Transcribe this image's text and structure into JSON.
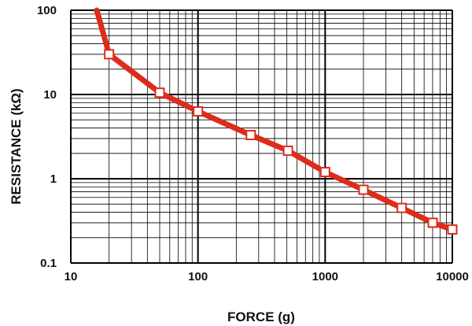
{
  "chart_data": {
    "type": "line",
    "title": "",
    "xlabel": "FORCE (g)",
    "ylabel": "RESISTANCE (kΩ)",
    "xscale": "log",
    "yscale": "log",
    "xlim": [
      10,
      10000
    ],
    "ylim": [
      0.1,
      100
    ],
    "grid": true,
    "x_ticks": [
      {
        "value": 10,
        "label": "10"
      },
      {
        "value": 100,
        "label": "100"
      },
      {
        "value": 1000,
        "label": "1000"
      },
      {
        "value": 10000,
        "label": "10000"
      }
    ],
    "y_ticks": [
      {
        "value": 0.1,
        "label": "0.1"
      },
      {
        "value": 1,
        "label": "1"
      },
      {
        "value": 10,
        "label": "10"
      },
      {
        "value": 100,
        "label": "100"
      }
    ],
    "line_color": "#dd2c1c",
    "marker_fill": "#ffffff",
    "grid_color": "#000000",
    "series": [
      {
        "curve_start": {
          "x": 16,
          "y": 100
        },
        "points": [
          {
            "x": 20,
            "y": 30
          },
          {
            "x": 50,
            "y": 10.5
          },
          {
            "x": 100,
            "y": 6.3
          },
          {
            "x": 260,
            "y": 3.3
          },
          {
            "x": 510,
            "y": 2.15
          },
          {
            "x": 1000,
            "y": 1.2
          },
          {
            "x": 2000,
            "y": 0.74
          },
          {
            "x": 4000,
            "y": 0.45
          },
          {
            "x": 7000,
            "y": 0.3
          },
          {
            "x": 10000,
            "y": 0.25
          }
        ]
      }
    ]
  }
}
